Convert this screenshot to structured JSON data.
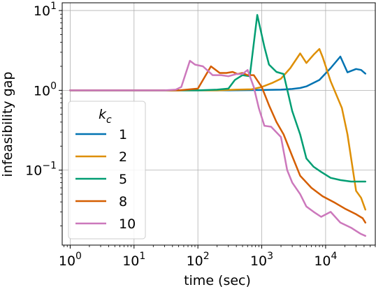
{
  "chart_data": {
    "type": "line",
    "title": "",
    "xlabel": "time (sec)",
    "ylabel": "infeasibility gap",
    "xscale": "log",
    "yscale": "log",
    "xlim": [
      0.75,
      60000
    ],
    "ylim": [
      0.0115,
      12.5
    ],
    "grid": true,
    "legend": {
      "title_base": "k",
      "title_sub": "c",
      "placement": "lower-left"
    },
    "x_ticks": [
      {
        "value": 1,
        "base": "10",
        "exp": "0"
      },
      {
        "value": 10,
        "base": "10",
        "exp": "1"
      },
      {
        "value": 100,
        "base": "10",
        "exp": "2"
      },
      {
        "value": 1000,
        "base": "10",
        "exp": "3"
      },
      {
        "value": 10000,
        "base": "10",
        "exp": "4"
      }
    ],
    "y_ticks": [
      {
        "value": 0.1,
        "base": "10",
        "exp": "−1"
      },
      {
        "value": 1,
        "base": "10",
        "exp": "0"
      },
      {
        "value": 10,
        "base": "10",
        "exp": "1"
      }
    ],
    "series": [
      {
        "name": "1",
        "color": "#0173b2",
        "points": [
          [
            1,
            1.0
          ],
          [
            10,
            1.0
          ],
          [
            100,
            1.0
          ],
          [
            300,
            1.0
          ],
          [
            1000,
            1.01
          ],
          [
            2000,
            1.02
          ],
          [
            3000,
            1.04
          ],
          [
            4000,
            1.07
          ],
          [
            5000,
            1.12
          ],
          [
            8000,
            1.35
          ],
          [
            12000,
            1.9
          ],
          [
            17000,
            2.65
          ],
          [
            22000,
            1.68
          ],
          [
            30000,
            1.85
          ],
          [
            36000,
            1.8
          ],
          [
            42000,
            1.62
          ]
        ]
      },
      {
        "name": "2",
        "color": "#de8f05",
        "points": [
          [
            1,
            1.0
          ],
          [
            10,
            1.0
          ],
          [
            100,
            1.0
          ],
          [
            200,
            1.0
          ],
          [
            400,
            1.02
          ],
          [
            700,
            1.03
          ],
          [
            1000,
            1.1
          ],
          [
            1500,
            1.25
          ],
          [
            2000,
            1.4
          ],
          [
            2800,
            1.9
          ],
          [
            4000,
            2.9
          ],
          [
            5000,
            2.2
          ],
          [
            6500,
            2.8
          ],
          [
            8000,
            3.3
          ],
          [
            9000,
            2.6
          ],
          [
            12000,
            1.3
          ],
          [
            18000,
            0.6
          ],
          [
            22000,
            0.28
          ],
          [
            30000,
            0.055
          ],
          [
            36000,
            0.045
          ],
          [
            42000,
            0.032
          ]
        ]
      },
      {
        "name": "5",
        "color": "#029e73",
        "points": [
          [
            1,
            1.0
          ],
          [
            10,
            1.0
          ],
          [
            100,
            1.0
          ],
          [
            200,
            1.02
          ],
          [
            300,
            1.05
          ],
          [
            380,
            1.35
          ],
          [
            500,
            1.55
          ],
          [
            650,
            1.5
          ],
          [
            850,
            8.8
          ],
          [
            1100,
            3.5
          ],
          [
            1300,
            2.1
          ],
          [
            1700,
            1.7
          ],
          [
            2200,
            1.6
          ],
          [
            3000,
            0.55
          ],
          [
            4000,
            0.28
          ],
          [
            5000,
            0.14
          ],
          [
            6500,
            0.11
          ],
          [
            8500,
            0.095
          ],
          [
            12000,
            0.08
          ],
          [
            17000,
            0.075
          ],
          [
            25000,
            0.072
          ],
          [
            35000,
            0.072
          ],
          [
            42000,
            0.072
          ]
        ]
      },
      {
        "name": "8",
        "color": "#d55e00",
        "points": [
          [
            1,
            1.0
          ],
          [
            10,
            1.0
          ],
          [
            50,
            1.0
          ],
          [
            100,
            1.05
          ],
          [
            160,
            2.0
          ],
          [
            220,
            1.65
          ],
          [
            280,
            1.65
          ],
          [
            350,
            1.7
          ],
          [
            420,
            1.6
          ],
          [
            500,
            1.65
          ],
          [
            600,
            1.55
          ],
          [
            750,
            1.55
          ],
          [
            1000,
            1.1
          ],
          [
            1300,
            0.65
          ],
          [
            1700,
            0.4
          ],
          [
            2200,
            0.28
          ],
          [
            3000,
            0.15
          ],
          [
            4000,
            0.085
          ],
          [
            6000,
            0.06
          ],
          [
            9000,
            0.047
          ],
          [
            14000,
            0.039
          ],
          [
            20000,
            0.033
          ],
          [
            30000,
            0.028
          ],
          [
            38000,
            0.025
          ],
          [
            42000,
            0.022
          ]
        ]
      },
      {
        "name": "10",
        "color": "#cc78bc",
        "points": [
          [
            1,
            1.0
          ],
          [
            10,
            1.0
          ],
          [
            30,
            1.0
          ],
          [
            45,
            1.02
          ],
          [
            55,
            1.1
          ],
          [
            75,
            2.35
          ],
          [
            90,
            2.1
          ],
          [
            120,
            2.0
          ],
          [
            170,
            1.55
          ],
          [
            230,
            1.55
          ],
          [
            300,
            1.5
          ],
          [
            400,
            1.6
          ],
          [
            500,
            1.6
          ],
          [
            600,
            1.8
          ],
          [
            750,
            1.1
          ],
          [
            900,
            0.6
          ],
          [
            1100,
            0.36
          ],
          [
            1400,
            0.35
          ],
          [
            2000,
            0.26
          ],
          [
            2500,
            0.1
          ],
          [
            3000,
            0.07
          ],
          [
            4000,
            0.05
          ],
          [
            5000,
            0.035
          ],
          [
            6500,
            0.03
          ],
          [
            8500,
            0.026
          ],
          [
            12000,
            0.03
          ],
          [
            17000,
            0.022
          ],
          [
            25000,
            0.019
          ],
          [
            35000,
            0.016
          ],
          [
            42000,
            0.015
          ]
        ]
      }
    ]
  }
}
